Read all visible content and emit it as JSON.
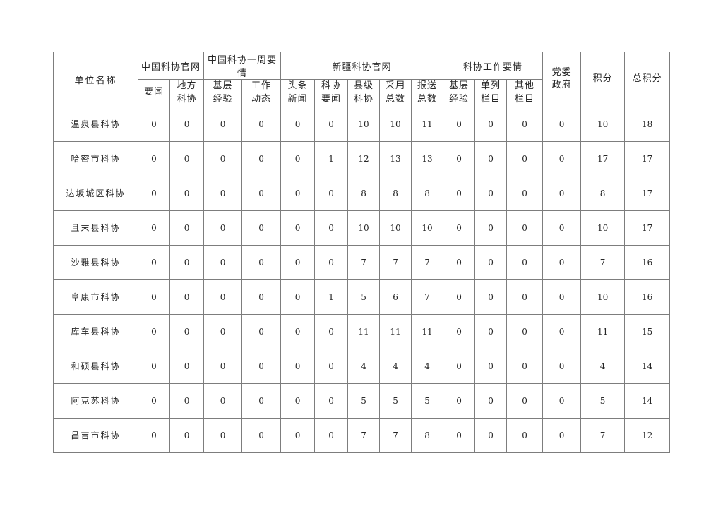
{
  "table": {
    "unit_col_header": "单位名称",
    "groups": [
      {
        "label": "中国科协官网",
        "cols": [
          "要闻",
          "地方\n科协"
        ]
      },
      {
        "label": "中国科协一周要情",
        "cols": [
          "基层\n经验",
          "工作\n动态"
        ]
      },
      {
        "label": "新疆科协官网",
        "cols": [
          "头条\n新闻",
          "科协\n要闻",
          "县级\n科协",
          "采用\n总数",
          "报送\n总数"
        ]
      },
      {
        "label": "科协工作要情",
        "cols": [
          "基层\n经验",
          "单列\n栏目",
          "其他\n栏目"
        ]
      }
    ],
    "single_headers": [
      "党委\n政府",
      "积分",
      "总积分"
    ],
    "rows": [
      {
        "name": "温泉县科协",
        "values": [
          0,
          0,
          0,
          0,
          0,
          0,
          10,
          10,
          11,
          0,
          0,
          0,
          0,
          10,
          18
        ]
      },
      {
        "name": "哈密市科协",
        "values": [
          0,
          0,
          0,
          0,
          0,
          1,
          12,
          13,
          13,
          0,
          0,
          0,
          0,
          17,
          17
        ]
      },
      {
        "name": "达坂城区科协",
        "values": [
          0,
          0,
          0,
          0,
          0,
          0,
          8,
          8,
          8,
          0,
          0,
          0,
          0,
          8,
          17
        ]
      },
      {
        "name": "且末县科协",
        "values": [
          0,
          0,
          0,
          0,
          0,
          0,
          10,
          10,
          10,
          0,
          0,
          0,
          0,
          10,
          17
        ]
      },
      {
        "name": "沙雅县科协",
        "values": [
          0,
          0,
          0,
          0,
          0,
          0,
          7,
          7,
          7,
          0,
          0,
          0,
          0,
          7,
          16
        ]
      },
      {
        "name": "阜康市科协",
        "values": [
          0,
          0,
          0,
          0,
          0,
          1,
          5,
          6,
          7,
          0,
          0,
          0,
          0,
          10,
          16
        ]
      },
      {
        "name": "库车县科协",
        "values": [
          0,
          0,
          0,
          0,
          0,
          0,
          11,
          11,
          11,
          0,
          0,
          0,
          0,
          11,
          15
        ]
      },
      {
        "name": "和硕县科协",
        "values": [
          0,
          0,
          0,
          0,
          0,
          0,
          4,
          4,
          4,
          0,
          0,
          0,
          0,
          4,
          14
        ]
      },
      {
        "name": "阿克苏科协",
        "values": [
          0,
          0,
          0,
          0,
          0,
          0,
          5,
          5,
          5,
          0,
          0,
          0,
          0,
          5,
          14
        ]
      },
      {
        "name": "昌吉市科协",
        "values": [
          0,
          0,
          0,
          0,
          0,
          0,
          7,
          7,
          8,
          0,
          0,
          0,
          0,
          7,
          12
        ]
      }
    ],
    "colors": {
      "border": "#7d7d7d",
      "text": "#262626",
      "background": "#ffffff"
    }
  }
}
